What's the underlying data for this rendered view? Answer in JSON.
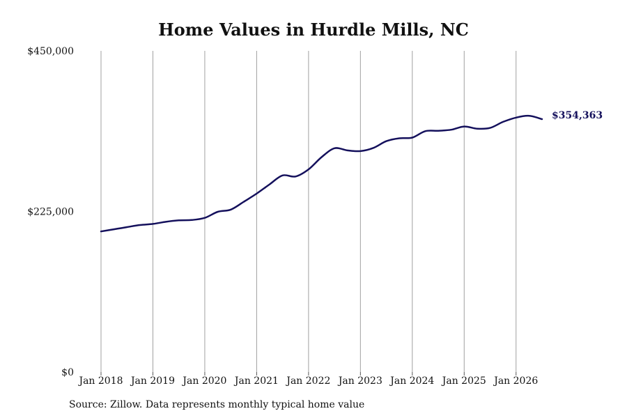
{
  "chart_data": {
    "type": "line",
    "title": "Home Values in Hurdle Mills, NC",
    "xlabel": "",
    "ylabel": "",
    "ylim": [
      0,
      450000
    ],
    "y_ticks": [
      {
        "value": 0,
        "label": "$0"
      },
      {
        "value": 225000,
        "label": "$225,000"
      },
      {
        "value": 450000,
        "label": "$450,000"
      }
    ],
    "x_range": [
      "2018-01",
      "2026-07"
    ],
    "x_ticks": [
      {
        "date": "2018-01",
        "label": "Jan 2018"
      },
      {
        "date": "2019-01",
        "label": "Jan 2019"
      },
      {
        "date": "2020-01",
        "label": "Jan 2020"
      },
      {
        "date": "2021-01",
        "label": "Jan 2021"
      },
      {
        "date": "2022-01",
        "label": "Jan 2022"
      },
      {
        "date": "2023-01",
        "label": "Jan 2023"
      },
      {
        "date": "2024-01",
        "label": "Jan 2024"
      },
      {
        "date": "2025-01",
        "label": "Jan 2025"
      },
      {
        "date": "2026-01",
        "label": "Jan 2026"
      }
    ],
    "vertical_grid": true,
    "horizontal_grid": false,
    "series": [
      {
        "name": "",
        "color": "#14105c",
        "points": [
          {
            "x": "2018-01",
            "y": 197000
          },
          {
            "x": "2018-04",
            "y": 200000
          },
          {
            "x": "2018-07",
            "y": 203000
          },
          {
            "x": "2018-10",
            "y": 206000
          },
          {
            "x": "2019-01",
            "y": 207500
          },
          {
            "x": "2019-04",
            "y": 210500
          },
          {
            "x": "2019-07",
            "y": 212500
          },
          {
            "x": "2019-10",
            "y": 213000
          },
          {
            "x": "2020-01",
            "y": 216000
          },
          {
            "x": "2020-04",
            "y": 224500
          },
          {
            "x": "2020-07",
            "y": 227500
          },
          {
            "x": "2020-10",
            "y": 238500
          },
          {
            "x": "2021-01",
            "y": 250000
          },
          {
            "x": "2021-04",
            "y": 263000
          },
          {
            "x": "2021-07",
            "y": 275500
          },
          {
            "x": "2021-10",
            "y": 274000
          },
          {
            "x": "2022-01",
            "y": 284000
          },
          {
            "x": "2022-04",
            "y": 301000
          },
          {
            "x": "2022-07",
            "y": 313500
          },
          {
            "x": "2022-10",
            "y": 310500
          },
          {
            "x": "2023-01",
            "y": 309500
          },
          {
            "x": "2023-04",
            "y": 314000
          },
          {
            "x": "2023-07",
            "y": 323500
          },
          {
            "x": "2023-10",
            "y": 327500
          },
          {
            "x": "2024-01",
            "y": 328500
          },
          {
            "x": "2024-04",
            "y": 337500
          },
          {
            "x": "2024-07",
            "y": 338000
          },
          {
            "x": "2024-10",
            "y": 339500
          },
          {
            "x": "2025-01",
            "y": 344000
          },
          {
            "x": "2025-04",
            "y": 341000
          },
          {
            "x": "2025-07",
            "y": 342000
          },
          {
            "x": "2025-10",
            "y": 350500
          },
          {
            "x": "2026-01",
            "y": 356500
          },
          {
            "x": "2026-04",
            "y": 359000
          },
          {
            "x": "2026-07",
            "y": 354363
          }
        ]
      }
    ],
    "end_label": "$354,363",
    "source_note": "Source: Zillow. Data represents monthly typical home value"
  }
}
